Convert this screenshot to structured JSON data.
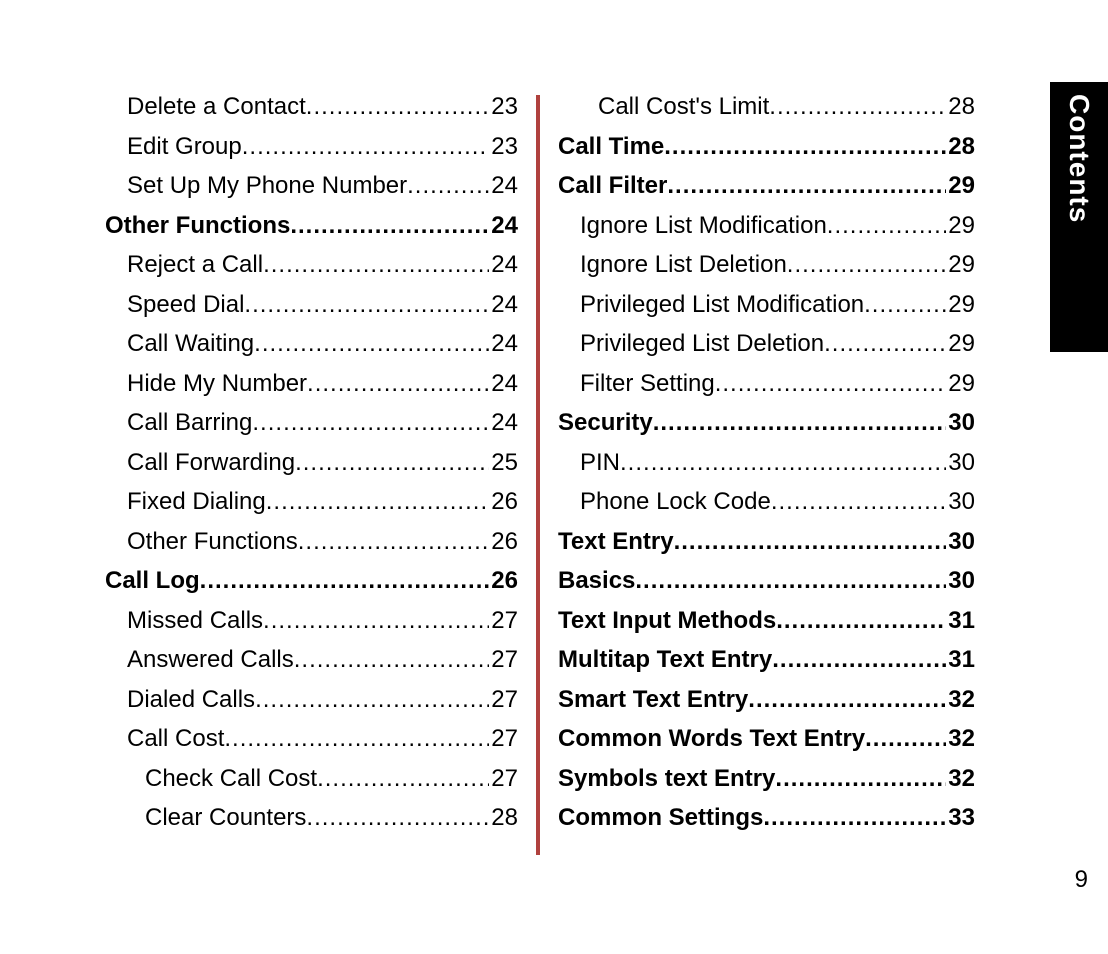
{
  "page_number": "9",
  "sidetab_label": "Contents",
  "colors": {
    "background": "#ffffff",
    "text": "#000000",
    "divider": "#b0413e",
    "sidetab_bg": "#000000",
    "sidetab_text": "#ffffff"
  },
  "typography": {
    "body_font_size_pt": 18,
    "body_font_family": "Arial",
    "sidetab_font_size_pt": 21,
    "sidetab_font_weight": 700
  },
  "columns": {
    "left": [
      {
        "label": "Delete a Contact",
        "page": "23",
        "bold": false,
        "indent": 1
      },
      {
        "label": "Edit Group",
        "page": "23",
        "bold": false,
        "indent": 1
      },
      {
        "label": "Set Up My Phone Number",
        "page": "24",
        "bold": false,
        "indent": 1
      },
      {
        "label": "Other Functions",
        "page": "24",
        "bold": true,
        "indent": 0
      },
      {
        "label": "Reject a Call",
        "page": "24",
        "bold": false,
        "indent": 1
      },
      {
        "label": "Speed Dial",
        "page": "24",
        "bold": false,
        "indent": 1
      },
      {
        "label": "Call Waiting",
        "page": "24",
        "bold": false,
        "indent": 1
      },
      {
        "label": "Hide My Number",
        "page": "24",
        "bold": false,
        "indent": 1
      },
      {
        "label": "Call Barring",
        "page": "24",
        "bold": false,
        "indent": 1
      },
      {
        "label": "Call Forwarding",
        "page": "25",
        "bold": false,
        "indent": 1
      },
      {
        "label": "Fixed Dialing",
        "page": "26",
        "bold": false,
        "indent": 1
      },
      {
        "label": "Other Functions",
        "page": "26",
        "bold": false,
        "indent": 1
      },
      {
        "label": "Call Log",
        "page": "26",
        "bold": true,
        "indent": 0
      },
      {
        "label": "Missed Calls",
        "page": "27",
        "bold": false,
        "indent": 1
      },
      {
        "label": "Answered Calls",
        "page": "27",
        "bold": false,
        "indent": 1
      },
      {
        "label": "Dialed Calls",
        "page": "27",
        "bold": false,
        "indent": 1
      },
      {
        "label": "Call Cost",
        "page": "27",
        "bold": false,
        "indent": 1
      },
      {
        "label": "Check Call Cost",
        "page": "27",
        "bold": false,
        "indent": 2
      },
      {
        "label": "Clear Counters",
        "page": "28",
        "bold": false,
        "indent": 2
      }
    ],
    "right": [
      {
        "label": "Call Cost's Limit",
        "page": "28",
        "bold": false,
        "indent": 2
      },
      {
        "label": "Call Time",
        "page": "28",
        "bold": true,
        "indent": 0
      },
      {
        "label": "Call Filter",
        "page": "29",
        "bold": true,
        "indent": 0
      },
      {
        "label": "Ignore List Modification",
        "page": "29",
        "bold": false,
        "indent": 1
      },
      {
        "label": "Ignore List Deletion",
        "page": "29",
        "bold": false,
        "indent": 1
      },
      {
        "label": "Privileged List Modification",
        "page": "29",
        "bold": false,
        "indent": 1
      },
      {
        "label": "Privileged List Deletion",
        "page": "29",
        "bold": false,
        "indent": 1
      },
      {
        "label": "Filter Setting",
        "page": "29",
        "bold": false,
        "indent": 1
      },
      {
        "label": "Security",
        "page": "30",
        "bold": true,
        "indent": 0
      },
      {
        "label": "PIN",
        "page": "30",
        "bold": false,
        "indent": 1
      },
      {
        "label": "Phone Lock Code",
        "page": "30",
        "bold": false,
        "indent": 1
      },
      {
        "label": "Text Entry",
        "page": "30",
        "bold": true,
        "indent": 0
      },
      {
        "label": "Basics",
        "page": "30",
        "bold": true,
        "indent": 0
      },
      {
        "label": "Text Input Methods",
        "page": "31",
        "bold": true,
        "indent": 0
      },
      {
        "label": "Multitap Text Entry",
        "page": "31",
        "bold": true,
        "indent": 0
      },
      {
        "label": "Smart Text Entry",
        "page": "32",
        "bold": true,
        "indent": 0
      },
      {
        "label": "Common Words Text Entry",
        "page": "32",
        "bold": true,
        "indent": 0
      },
      {
        "label": "Symbols text Entry",
        "page": "32",
        "bold": true,
        "indent": 0
      },
      {
        "label": "Common Settings",
        "page": "33",
        "bold": true,
        "indent": 0
      }
    ]
  }
}
